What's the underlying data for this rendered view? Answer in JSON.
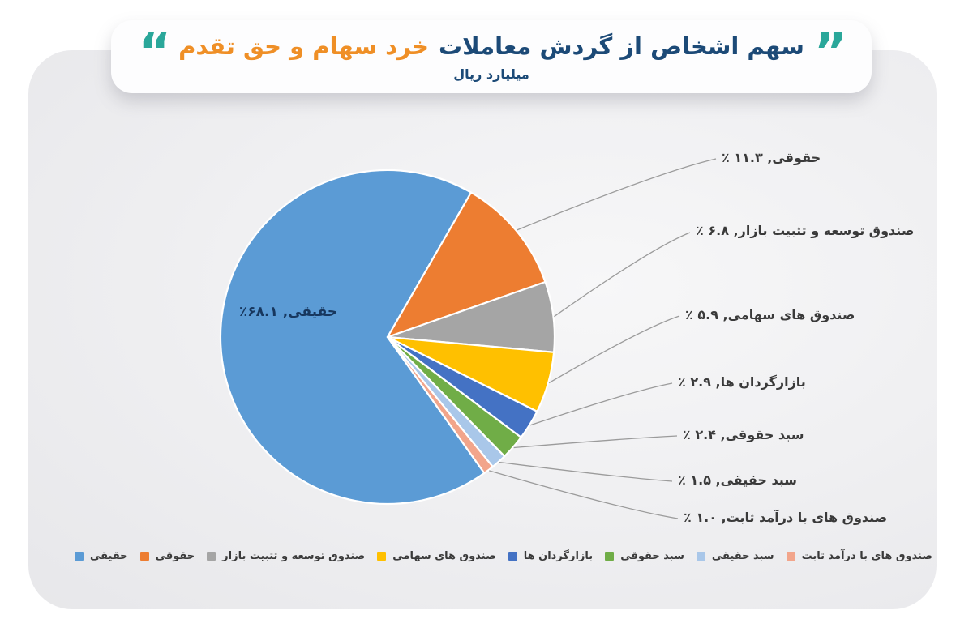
{
  "header": {
    "title_primary": "سهم اشخاص از گردش معاملات",
    "title_highlight": "خرد سهام و حق تقدم",
    "subtitle": "میلیارد ریال",
    "quote_right_glyph": "”",
    "quote_left_glyph": "“",
    "title_color": "#1c4a77",
    "highlight_color": "#ef8f26",
    "quote_color": "#2aa79a"
  },
  "chart_data": {
    "type": "pie",
    "title": "سهم اشخاص از گردش معاملات خرد سهام و حق تقدم",
    "unit_label": "میلیارد ریال",
    "start_angle_deg": 144.6,
    "direction": "clockwise",
    "legend_position": "bottom",
    "slice_border_color": "#ffffff",
    "leader_line_color": "#9b9b9b",
    "slices": [
      {
        "label": "حقیقی",
        "value": 68.1,
        "display": "حقیقی, ۶۸.۱٪",
        "color": "#5b9bd5",
        "label_position": "inside"
      },
      {
        "label": "حقوقی",
        "value": 11.3,
        "display": "حقوقی, ۱۱.۳ ٪",
        "color": "#ed7d31",
        "label_position": "callout"
      },
      {
        "label": "صندوق توسعه و تثبیت بازار",
        "value": 6.8,
        "display": "صندوق توسعه و تثبیت بازار, ۶.۸ ٪",
        "color": "#a5a5a5",
        "label_position": "callout"
      },
      {
        "label": "صندوق های سهامی",
        "value": 5.9,
        "display": "صندوق های سهامی, ۵.۹ ٪",
        "color": "#ffc000",
        "label_position": "callout"
      },
      {
        "label": "بازارگردان ها",
        "value": 2.9,
        "display": "بازارگردان ها, ۲.۹ ٪",
        "color": "#4472c4",
        "label_position": "callout"
      },
      {
        "label": "سبد حقوقی",
        "value": 2.4,
        "display": "سبد حقوقی, ۲.۴ ٪",
        "color": "#70ad47",
        "label_position": "callout"
      },
      {
        "label": "سبد حقیقی",
        "value": 1.5,
        "display": "سبد حقیقی, ۱.۵ ٪",
        "color": "#a9c7e9",
        "label_position": "callout"
      },
      {
        "label": "صندوق های با درآمد ثابت",
        "value": 1.0,
        "display": "صندوق های با درآمد ثابت, ۱.۰ ٪",
        "color": "#f2a58b",
        "label_position": "callout"
      }
    ]
  }
}
